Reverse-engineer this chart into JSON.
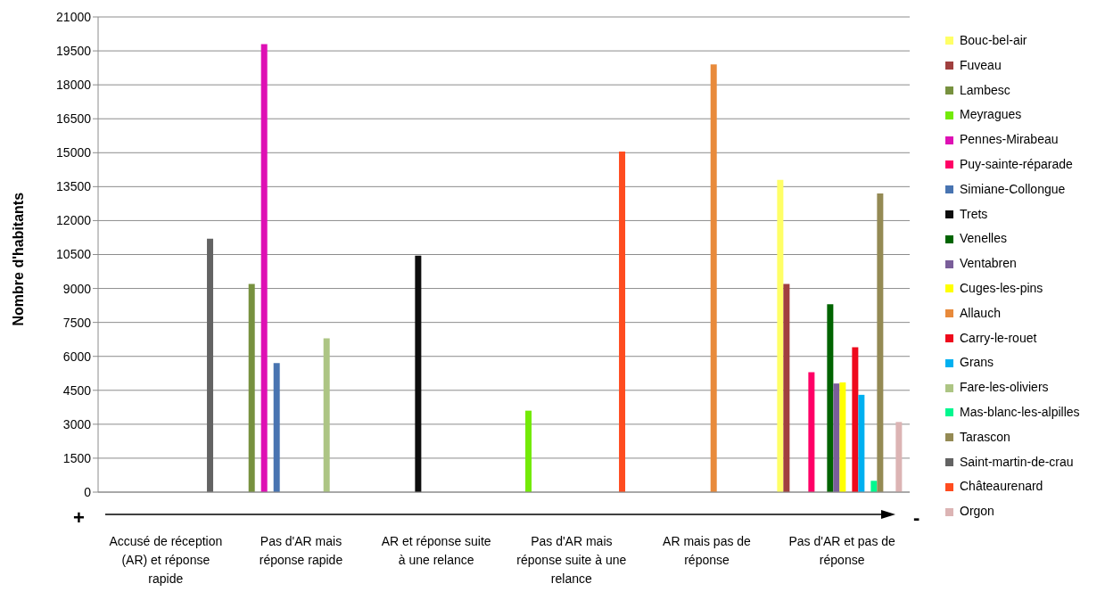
{
  "chart_data": {
    "type": "bar",
    "ylabel": "Nombre d'habitants",
    "categories": [
      "Accusé de réception (AR) et réponse rapide",
      "Pas d'AR mais réponse rapide",
      "AR et réponse suite à une relance",
      "Pas d'AR mais réponse suite à une relance",
      "AR mais pas de réponse",
      "Pas d'AR et pas de réponse"
    ],
    "series": [
      {
        "name": "Bouc-bel-air",
        "color": "#ffff66",
        "values": [
          null,
          null,
          null,
          null,
          null,
          13800
        ]
      },
      {
        "name": "Fuveau",
        "color": "#a0403f",
        "values": [
          null,
          null,
          null,
          null,
          null,
          9200
        ]
      },
      {
        "name": "Lambesc",
        "color": "#77913f",
        "values": [
          null,
          9200,
          null,
          null,
          null,
          null
        ]
      },
      {
        "name": "Meyragues",
        "color": "#73ea07",
        "values": [
          null,
          null,
          null,
          3600,
          null,
          null
        ]
      },
      {
        "name": "Pennes-Mirabeau",
        "color": "#de10b4",
        "values": [
          null,
          19800,
          null,
          null,
          null,
          null
        ]
      },
      {
        "name": "Puy-sainte-réparade",
        "color": "#ff0066",
        "values": [
          null,
          null,
          null,
          null,
          null,
          5300
        ]
      },
      {
        "name": "Simiane-Collongue",
        "color": "#4874b1",
        "values": [
          null,
          5700,
          null,
          null,
          null,
          null
        ]
      },
      {
        "name": "Trets",
        "color": "#0d0d0d",
        "values": [
          null,
          null,
          10450,
          null,
          null,
          null
        ]
      },
      {
        "name": "Venelles",
        "color": "#006400",
        "values": [
          null,
          null,
          null,
          null,
          null,
          8300
        ]
      },
      {
        "name": "Ventabren",
        "color": "#7a5e9a",
        "values": [
          null,
          null,
          null,
          null,
          null,
          4800
        ]
      },
      {
        "name": "Cuges-les-pins",
        "color": "#ffff00",
        "values": [
          null,
          null,
          null,
          null,
          null,
          4850
        ]
      },
      {
        "name": "Allauch",
        "color": "#e88a3b",
        "values": [
          null,
          null,
          null,
          null,
          18900,
          null
        ]
      },
      {
        "name": "Carry-le-rouet",
        "color": "#ee0a1c",
        "values": [
          null,
          null,
          null,
          null,
          null,
          6400
        ]
      },
      {
        "name": "Grans",
        "color": "#00b0f0",
        "values": [
          null,
          null,
          null,
          null,
          null,
          4300
        ]
      },
      {
        "name": "Fare-les-oliviers",
        "color": "#adc584",
        "values": [
          null,
          6800,
          null,
          null,
          null,
          null
        ]
      },
      {
        "name": "Mas-blanc-les-alpilles",
        "color": "#00f78f",
        "values": [
          null,
          null,
          null,
          null,
          null,
          500
        ]
      },
      {
        "name": "Tarascon",
        "color": "#948a54",
        "values": [
          null,
          null,
          null,
          null,
          null,
          13200
        ]
      },
      {
        "name": "Saint-martin-de-crau",
        "color": "#636363",
        "values": [
          11200,
          null,
          null,
          null,
          null,
          null
        ]
      },
      {
        "name": "Châteaurenard",
        "color": "#ff4c1f",
        "values": [
          null,
          null,
          null,
          15050,
          null,
          null
        ]
      },
      {
        "name": "Orgon",
        "color": "#dcb4b4",
        "values": [
          null,
          null,
          null,
          null,
          null,
          3100
        ]
      }
    ],
    "ylim": [
      0,
      21000
    ],
    "yticks": [
      0,
      1500,
      3000,
      4500,
      6000,
      7500,
      9000,
      10500,
      12000,
      13500,
      15000,
      16500,
      18000,
      19500,
      21000
    ],
    "grid": "y",
    "legend": "right",
    "annotations": [
      "+",
      "-"
    ]
  }
}
